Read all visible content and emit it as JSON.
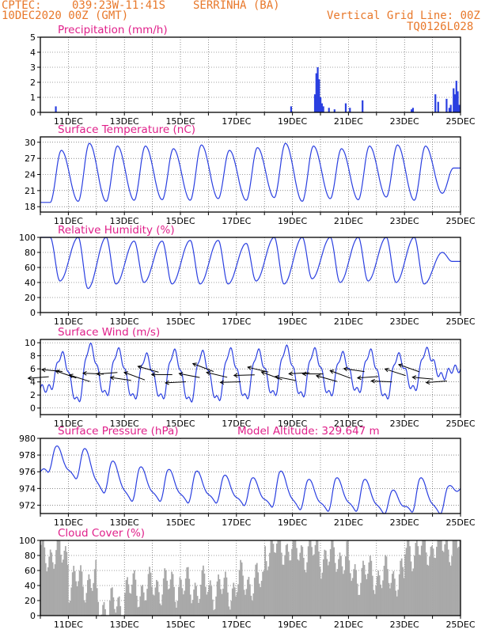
{
  "header": {
    "source": "CPTEC:",
    "coords": "039:23W-11:41S",
    "station": "SERRINHA (BA)",
    "run": "10DEC2020 00Z (GMT)",
    "grid_note": "Vertical Grid Line: 00Z",
    "model": "TQ0126L028"
  },
  "colors": {
    "header": "#e8782a",
    "panel_title": "#e0208a",
    "series": "#2a3fe0",
    "cloud": "#a9a9a9",
    "arrow": "#000000",
    "axis": "#000000"
  },
  "chart_data": [
    {
      "type": "bar",
      "title": "Precipitation (mm/h)",
      "xlim": [
        0,
        15
      ],
      "ylim": [
        0,
        5
      ],
      "yticks": [
        0,
        1,
        2,
        3,
        4,
        5
      ],
      "x_tick_labels": [
        "11DEC",
        "13DEC",
        "15DEC",
        "17DEC",
        "19DEC",
        "21DEC",
        "23DEC",
        "25DEC"
      ],
      "x": [
        0.55,
        8.95,
        9.8,
        9.85,
        9.9,
        9.95,
        10.0,
        10.05,
        10.1,
        10.3,
        10.5,
        10.9,
        11.05,
        11.5,
        13.25,
        13.3,
        14.1,
        14.2,
        14.5,
        14.6,
        14.65,
        14.75,
        14.8,
        14.85,
        14.9,
        14.95
      ],
      "values": [
        0.4,
        0.4,
        1.2,
        2.6,
        3.0,
        2.2,
        1.0,
        0.6,
        0.4,
        0.3,
        0.2,
        0.6,
        0.3,
        0.8,
        0.2,
        0.3,
        1.2,
        0.7,
        0.9,
        0.3,
        0.5,
        1.6,
        1.2,
        2.1,
        1.4,
        0.5
      ],
      "grid": true
    },
    {
      "type": "line",
      "title": "Surface Temperature (nC)",
      "xlim": [
        0,
        15
      ],
      "ylim": [
        17,
        31
      ],
      "yticks": [
        18,
        21,
        24,
        27,
        30
      ],
      "x_tick_labels": [
        "11DEC",
        "13DEC",
        "15DEC",
        "17DEC",
        "19DEC",
        "21DEC",
        "23DEC",
        "25DEC"
      ],
      "daily_max": [
        28.5,
        29.8,
        29.3,
        29.3,
        28.8,
        29.5,
        28.5,
        29.0,
        29.8,
        29.3,
        28.8,
        29.3,
        29.5,
        29.3,
        25.2
      ],
      "daily_min": [
        18.8,
        19.0,
        19.0,
        19.2,
        19.3,
        19.2,
        19.5,
        19.2,
        19.7,
        19.0,
        19.5,
        19.3,
        19.8,
        19.2,
        20.5
      ],
      "grid": true
    },
    {
      "type": "line",
      "title": "Relative Humidity (%)",
      "xlim": [
        0,
        15
      ],
      "ylim": [
        0,
        100
      ],
      "yticks": [
        0,
        20,
        40,
        60,
        80,
        100
      ],
      "x_tick_labels": [
        "11DEC",
        "13DEC",
        "15DEC",
        "17DEC",
        "19DEC",
        "21DEC",
        "23DEC",
        "25DEC"
      ],
      "daily_max": [
        100,
        100,
        100,
        95,
        95,
        96,
        96,
        92,
        100,
        100,
        100,
        100,
        100,
        100,
        80
      ],
      "daily_min": [
        42,
        32,
        38,
        40,
        38,
        38,
        38,
        42,
        38,
        45,
        40,
        42,
        40,
        38,
        68
      ],
      "grid": true
    },
    {
      "type": "line",
      "title": "Surface Wind (m/s)",
      "xlim": [
        0,
        15
      ],
      "ylim": [
        -1,
        10.5
      ],
      "yticks": [
        0,
        2,
        4,
        6,
        8,
        10
      ],
      "x_tick_labels": [
        "11DEC",
        "13DEC",
        "15DEC",
        "17DEC",
        "19DEC",
        "21DEC",
        "23DEC",
        "25DEC"
      ],
      "daily_max": [
        8.2,
        9.5,
        8.8,
        8.0,
        8.6,
        8.4,
        8.8,
        8.6,
        9.2,
        8.8,
        8.2,
        8.6,
        8.0,
        8.8,
        6.0
      ],
      "daily_min": [
        3.0,
        1.0,
        2.0,
        1.5,
        1.5,
        1.0,
        1.2,
        1.5,
        2.0,
        1.8,
        2.0,
        2.5,
        1.5,
        2.8,
        4.8
      ],
      "direction_arrows": "wind vectors every 6h, pointing westward",
      "grid": true
    },
    {
      "type": "line",
      "title": "Surface Pressure (hPa)",
      "annotation": "Model Altitude: 329.647 m",
      "xlim": [
        0,
        15
      ],
      "ylim": [
        971,
        980
      ],
      "yticks": [
        972,
        974,
        976,
        978,
        980
      ],
      "x_tick_labels": [
        "11DEC",
        "13DEC",
        "15DEC",
        "17DEC",
        "19DEC",
        "21DEC",
        "23DEC",
        "25DEC"
      ],
      "daily_max": [
        978.8,
        978.5,
        977.0,
        976.3,
        976.0,
        975.8,
        975.3,
        975.0,
        975.8,
        974.8,
        975.0,
        974.8,
        973.5,
        975.0,
        974.0
      ],
      "daily_min": [
        976.0,
        975.2,
        973.5,
        972.5,
        972.5,
        972.3,
        972.3,
        972.0,
        971.8,
        971.5,
        971.3,
        971.3,
        971.0,
        971.2,
        971.0
      ],
      "grid": true
    },
    {
      "type": "area",
      "title": "Cloud Cover (%)",
      "xlim": [
        0,
        15
      ],
      "ylim": [
        0,
        100
      ],
      "yticks": [
        0,
        20,
        40,
        60,
        80,
        100
      ],
      "x_tick_labels": [
        "11DEC",
        "13DEC",
        "15DEC",
        "17DEC",
        "19DEC",
        "21DEC",
        "23DEC",
        "25DEC"
      ],
      "daily_mean": [
        82,
        45,
        12,
        35,
        40,
        38,
        35,
        45,
        90,
        85,
        78,
        55,
        52,
        88,
        95
      ],
      "grid": true
    }
  ]
}
